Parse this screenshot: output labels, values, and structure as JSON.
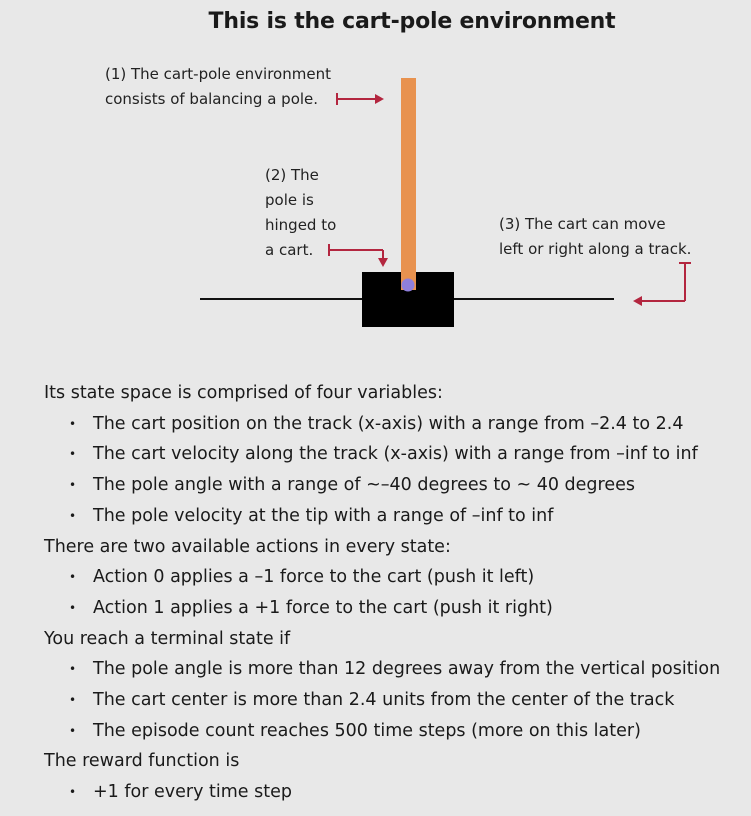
{
  "title": "This is the cart-pole environment",
  "annotations": {
    "one": {
      "line1": "(1) The cart-pole environment",
      "line2": "consists of balancing a pole."
    },
    "two": {
      "line1": "(2) The",
      "line2": "pole is",
      "line3": "hinged to",
      "line4": "a cart."
    },
    "three": {
      "line1": "(3) The cart can move",
      "line2": "left or right along a track."
    }
  },
  "colors": {
    "pole": "#e8924f",
    "hinge": "#8f7fdc",
    "cart": "#000000",
    "arrow": "#b3263f",
    "background": "#e8e8e8"
  },
  "sections": [
    {
      "heading": "Its state space is comprised of four variables:",
      "items": [
        "The cart position on the track (x-axis) with a range from –2.4 to 2.4",
        "The cart velocity along the track (x-axis) with a range from –inf to inf",
        "The pole angle with a range of ~–40 degrees to ~ 40 degrees",
        "The pole velocity at the tip with a range of –inf to inf"
      ]
    },
    {
      "heading": "There are two available actions in every state:",
      "items": [
        "Action 0 applies a –1 force to the cart (push it left)",
        "Action 1 applies a +1 force to the cart (push it right)"
      ]
    },
    {
      "heading": "You reach a terminal state if",
      "items": [
        "The pole angle is more than 12 degrees away from the vertical position",
        "The cart center is more than 2.4 units from the center of the track",
        "The episode count reaches 500 time steps (more on this later)"
      ]
    },
    {
      "heading": "The reward function is",
      "items": [
        "+1 for every time step"
      ]
    }
  ]
}
